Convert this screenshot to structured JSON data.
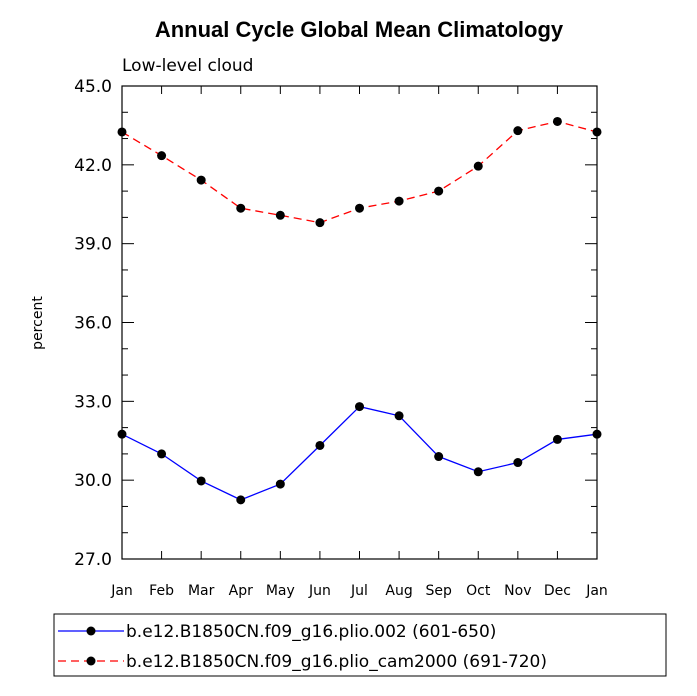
{
  "chart_data": {
    "type": "line",
    "title": "Annual Cycle Global Mean Climatology",
    "subtitle": "Low-level cloud",
    "xlabel": "",
    "ylabel": "percent",
    "categories": [
      "Jan",
      "Feb",
      "Mar",
      "Apr",
      "May",
      "Jun",
      "Jul",
      "Aug",
      "Sep",
      "Oct",
      "Nov",
      "Dec",
      "Jan"
    ],
    "ylim": [
      27.0,
      45.0
    ],
    "yticks": [
      "27.0",
      "30.0",
      "33.0",
      "36.0",
      "39.0",
      "42.0",
      "45.0"
    ],
    "series": [
      {
        "name": "b.e12.B1850CN.f09_g16.plio.002 (601-650)",
        "color": "#0000ff",
        "dash": "solid",
        "values": [
          31.75,
          31.0,
          29.97,
          29.25,
          29.85,
          31.32,
          32.8,
          32.45,
          30.9,
          30.32,
          30.67,
          31.55,
          31.75
        ]
      },
      {
        "name": "b.e12.B1850CN.f09_g16.plio_cam2000 (691-720)",
        "color": "#ff0000",
        "dash": "dashed",
        "values": [
          43.25,
          42.35,
          41.42,
          40.35,
          40.08,
          39.8,
          40.35,
          40.62,
          41.0,
          41.95,
          43.3,
          43.65,
          43.25
        ]
      }
    ],
    "legend_position": "bottom"
  }
}
